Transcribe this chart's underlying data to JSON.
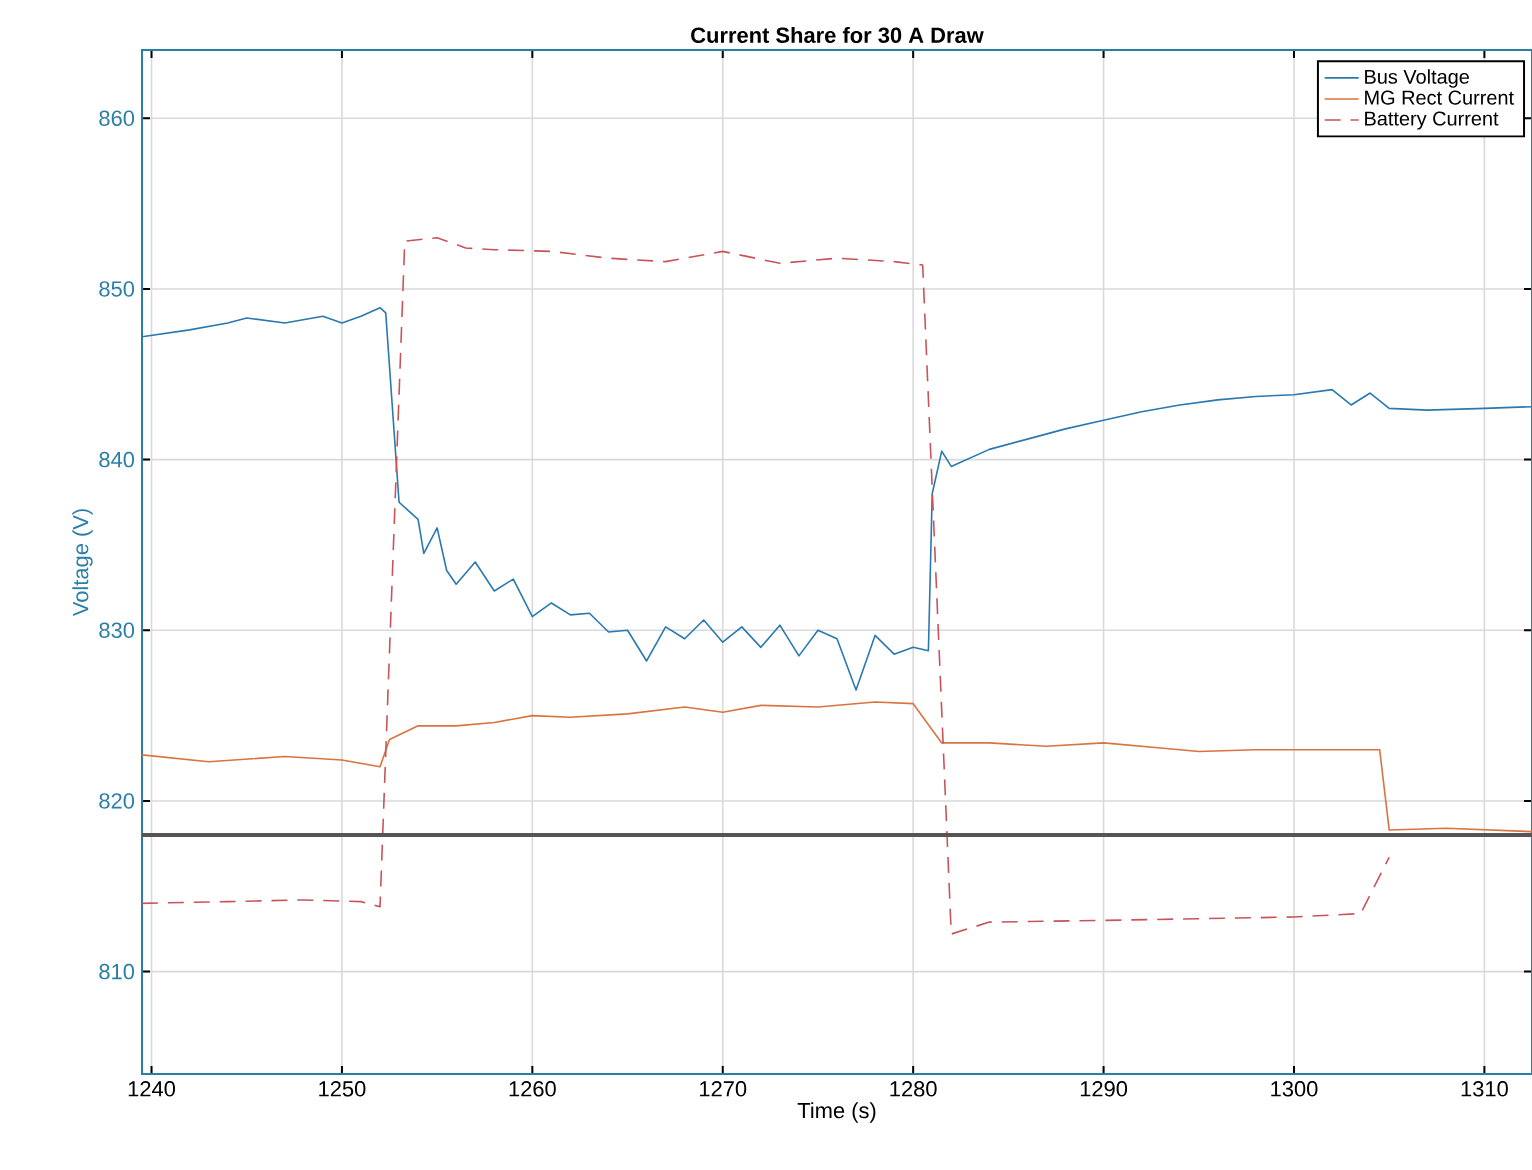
{
  "chart_data": {
    "type": "line",
    "title": "Current Share for 30 A Draw",
    "xlabel": "Time (s)",
    "ylabel": "Voltage (V)",
    "xlim": [
      1239.5,
      1312.5
    ],
    "xticks": [
      1240,
      1250,
      1260,
      1270,
      1280,
      1290,
      1300,
      1310
    ],
    "ylim": [
      804,
      864
    ],
    "yticks": [
      810,
      820,
      830,
      840,
      850,
      860
    ],
    "grid": true,
    "legend": "top right",
    "ref_lines": [
      {
        "axis": "y",
        "value": 818,
        "color": "#555555"
      }
    ],
    "series": [
      {
        "name": "Bus Voltage",
        "color": "#2a78b0",
        "line_style": "solid",
        "x": [
          1239.5,
          1242,
          1244,
          1245,
          1247,
          1249,
          1250,
          1251,
          1252,
          1252.3,
          1253,
          1253.5,
          1254,
          1254.3,
          1255,
          1255.5,
          1256,
          1257,
          1258,
          1259,
          1260,
          1261,
          1262,
          1263,
          1264,
          1265,
          1266,
          1267,
          1268,
          1269,
          1270,
          1271,
          1272,
          1273,
          1274,
          1275,
          1276,
          1277,
          1278,
          1279,
          1280,
          1280.8,
          1281,
          1281.5,
          1282,
          1284,
          1286,
          1288,
          1290,
          1292,
          1294,
          1296,
          1298,
          1300,
          1302,
          1303,
          1304,
          1305,
          1307,
          1310,
          1312.5
        ],
        "values": [
          847.2,
          847.6,
          848.0,
          848.3,
          848.0,
          848.4,
          848.0,
          848.4,
          848.9,
          848.6,
          837.5,
          837,
          836.5,
          834.5,
          836,
          833.5,
          832.7,
          834,
          832.3,
          833.0,
          830.8,
          831.6,
          830.9,
          831.0,
          829.9,
          830.0,
          828.2,
          830.2,
          829.5,
          830.6,
          829.3,
          830.2,
          829.0,
          830.3,
          828.5,
          830.0,
          829.5,
          826.5,
          829.7,
          828.6,
          829.0,
          828.8,
          838,
          840.5,
          839.6,
          840.6,
          841.2,
          841.8,
          842.3,
          842.8,
          843.2,
          843.5,
          843.7,
          843.8,
          844.1,
          843.2,
          843.9,
          843.0,
          842.9,
          843.0,
          843.1
        ]
      },
      {
        "name": "MG Rect Current",
        "color": "#d9733f",
        "line_style": "solid",
        "x": [
          1239.5,
          1243,
          1247,
          1250,
          1252,
          1252.5,
          1254,
          1256,
          1258,
          1260,
          1262,
          1265,
          1268,
          1270,
          1272,
          1275,
          1278,
          1280,
          1281.5,
          1284,
          1287,
          1290,
          1293,
          1295,
          1298,
          1300,
          1304.5,
          1305,
          1308,
          1312.5
        ],
        "values": [
          822.7,
          822.3,
          822.6,
          822.4,
          822.0,
          823.6,
          824.4,
          824.4,
          824.6,
          825.0,
          824.9,
          825.1,
          825.5,
          825.2,
          825.6,
          825.5,
          825.8,
          825.7,
          823.4,
          823.4,
          823.2,
          823.4,
          823.1,
          822.9,
          823.0,
          823.0,
          823.0,
          818.3,
          818.4,
          818.2
        ]
      },
      {
        "name": "Battery Current",
        "color": "#c8545a",
        "line_style": "dashed",
        "x": [
          1239.5,
          1244,
          1248,
          1251,
          1252,
          1253.3,
          1255,
          1256.5,
          1258,
          1261,
          1264,
          1267,
          1270,
          1273,
          1276,
          1279,
          1280.5,
          1282,
          1284,
          1290,
          1295,
          1300,
          1303.5,
          1305
        ],
        "values": [
          814.0,
          814.1,
          814.2,
          814.1,
          813.8,
          852.8,
          853.0,
          852.4,
          852.3,
          852.2,
          851.8,
          851.6,
          852.2,
          851.5,
          851.8,
          851.6,
          851.4,
          812.2,
          812.9,
          813.0,
          813.1,
          813.2,
          813.4,
          816.7
        ]
      }
    ]
  }
}
